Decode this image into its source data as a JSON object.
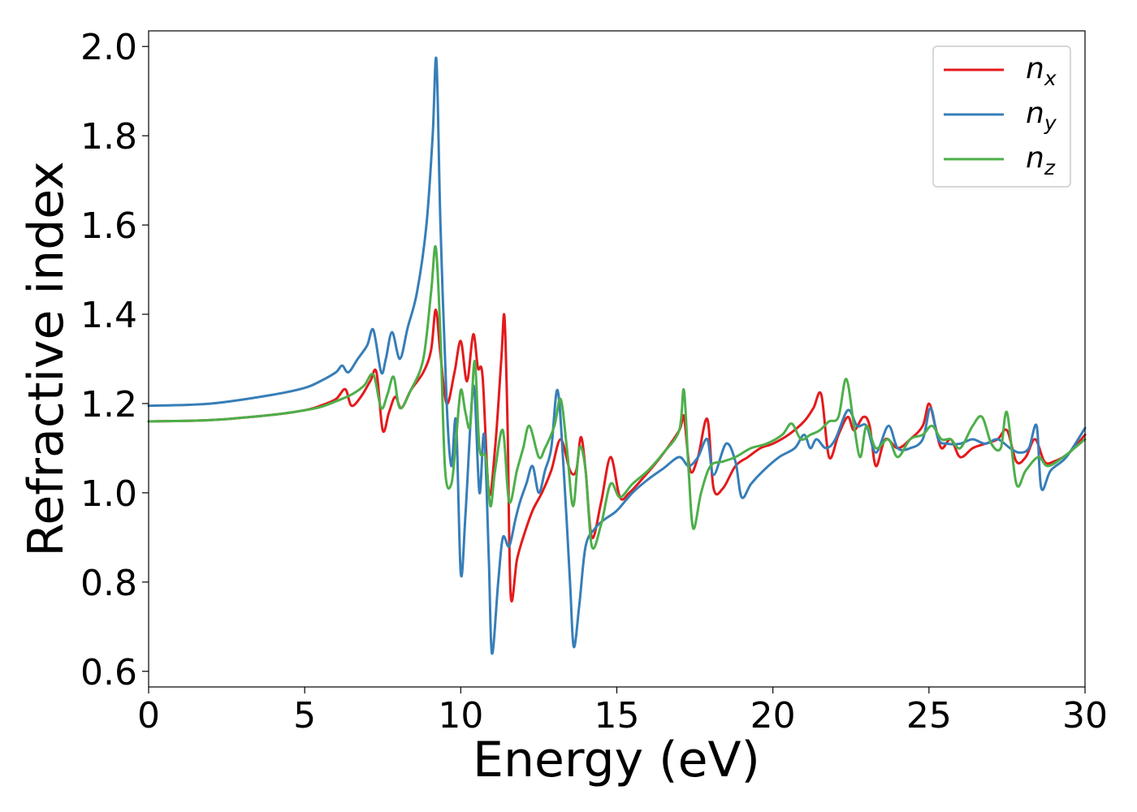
{
  "chart_data": {
    "type": "line",
    "title": "",
    "xlabel": "Energy (eV)",
    "ylabel": "Refractive index",
    "xlim": [
      0,
      30
    ],
    "ylim": [
      0.565,
      2.035
    ],
    "xticks": [
      0,
      5,
      10,
      15,
      20,
      25,
      30
    ],
    "xtick_labels": [
      "0",
      "5",
      "10",
      "15",
      "20",
      "25",
      "30"
    ],
    "yticks": [
      0.6,
      0.8,
      1.0,
      1.2,
      1.4,
      1.6,
      1.8,
      2.0
    ],
    "ytick_labels": [
      "0.6",
      "0.8",
      "1.0",
      "1.2",
      "1.4",
      "1.6",
      "1.8",
      "2.0"
    ],
    "grid": false,
    "legend_position": "top-right",
    "series": [
      {
        "name": "n_x",
        "legend_base": "n",
        "legend_sub": "x",
        "color": "#e41a1c",
        "points": [
          [
            0,
            1.16
          ],
          [
            2,
            1.163
          ],
          [
            4,
            1.175
          ],
          [
            5,
            1.185
          ],
          [
            5.5,
            1.195
          ],
          [
            6,
            1.21
          ],
          [
            6.3,
            1.232
          ],
          [
            6.5,
            1.195
          ],
          [
            6.8,
            1.215
          ],
          [
            7.1,
            1.25
          ],
          [
            7.3,
            1.27
          ],
          [
            7.5,
            1.14
          ],
          [
            7.7,
            1.18
          ],
          [
            7.9,
            1.215
          ],
          [
            8.1,
            1.19
          ],
          [
            8.4,
            1.23
          ],
          [
            8.8,
            1.27
          ],
          [
            9.05,
            1.32
          ],
          [
            9.2,
            1.41
          ],
          [
            9.35,
            1.31
          ],
          [
            9.55,
            1.2
          ],
          [
            9.8,
            1.27
          ],
          [
            10.0,
            1.34
          ],
          [
            10.2,
            1.25
          ],
          [
            10.4,
            1.355
          ],
          [
            10.55,
            1.28
          ],
          [
            10.7,
            1.26
          ],
          [
            10.9,
            1.0
          ],
          [
            11.1,
            1.1
          ],
          [
            11.3,
            1.3
          ],
          [
            11.4,
            1.395
          ],
          [
            11.5,
            1.15
          ],
          [
            11.6,
            0.77
          ],
          [
            11.8,
            0.85
          ],
          [
            12.0,
            0.9
          ],
          [
            12.3,
            0.96
          ],
          [
            12.6,
            1.0
          ],
          [
            12.9,
            1.05
          ],
          [
            13.2,
            1.12
          ],
          [
            13.5,
            1.05
          ],
          [
            13.7,
            1.05
          ],
          [
            13.85,
            1.125
          ],
          [
            14.0,
            1.05
          ],
          [
            14.2,
            0.9
          ],
          [
            14.5,
            0.98
          ],
          [
            14.8,
            1.08
          ],
          [
            15.1,
            0.99
          ],
          [
            15.4,
            1.0
          ],
          [
            15.8,
            1.03
          ],
          [
            16.4,
            1.08
          ],
          [
            17.0,
            1.14
          ],
          [
            17.15,
            1.17
          ],
          [
            17.35,
            1.05
          ],
          [
            17.6,
            1.08
          ],
          [
            17.9,
            1.165
          ],
          [
            18.1,
            1.01
          ],
          [
            18.4,
            1.01
          ],
          [
            18.8,
            1.06
          ],
          [
            19.2,
            1.08
          ],
          [
            19.6,
            1.1
          ],
          [
            20.0,
            1.11
          ],
          [
            20.5,
            1.13
          ],
          [
            21.0,
            1.16
          ],
          [
            21.3,
            1.19
          ],
          [
            21.55,
            1.22
          ],
          [
            21.8,
            1.08
          ],
          [
            22.1,
            1.13
          ],
          [
            22.4,
            1.17
          ],
          [
            22.6,
            1.14
          ],
          [
            22.9,
            1.17
          ],
          [
            23.1,
            1.15
          ],
          [
            23.3,
            1.06
          ],
          [
            23.6,
            1.12
          ],
          [
            24.0,
            1.1
          ],
          [
            24.4,
            1.12
          ],
          [
            24.8,
            1.15
          ],
          [
            25.0,
            1.2
          ],
          [
            25.2,
            1.15
          ],
          [
            25.4,
            1.1
          ],
          [
            25.7,
            1.12
          ],
          [
            26.0,
            1.08
          ],
          [
            26.4,
            1.1
          ],
          [
            26.8,
            1.11
          ],
          [
            27.2,
            1.12
          ],
          [
            27.5,
            1.14
          ],
          [
            27.8,
            1.07
          ],
          [
            28.1,
            1.08
          ],
          [
            28.4,
            1.12
          ],
          [
            28.7,
            1.07
          ],
          [
            29.0,
            1.07
          ],
          [
            29.5,
            1.09
          ],
          [
            30.0,
            1.13
          ]
        ]
      },
      {
        "name": "n_y",
        "legend_base": "n",
        "legend_sub": "y",
        "color": "#377eb8",
        "points": [
          [
            0,
            1.195
          ],
          [
            2,
            1.2
          ],
          [
            4,
            1.22
          ],
          [
            5,
            1.235
          ],
          [
            5.5,
            1.25
          ],
          [
            6,
            1.27
          ],
          [
            6.2,
            1.285
          ],
          [
            6.4,
            1.27
          ],
          [
            6.7,
            1.3
          ],
          [
            7.0,
            1.33
          ],
          [
            7.2,
            1.365
          ],
          [
            7.45,
            1.27
          ],
          [
            7.6,
            1.3
          ],
          [
            7.8,
            1.36
          ],
          [
            8.05,
            1.3
          ],
          [
            8.3,
            1.37
          ],
          [
            8.6,
            1.45
          ],
          [
            8.9,
            1.6
          ],
          [
            9.1,
            1.8
          ],
          [
            9.22,
            1.97
          ],
          [
            9.35,
            1.6
          ],
          [
            9.55,
            1.2
          ],
          [
            9.7,
            1.06
          ],
          [
            9.85,
            1.16
          ],
          [
            10.0,
            0.82
          ],
          [
            10.15,
            0.95
          ],
          [
            10.35,
            1.2
          ],
          [
            10.45,
            1.22
          ],
          [
            10.6,
            1.0
          ],
          [
            10.75,
            1.13
          ],
          [
            10.9,
            0.85
          ],
          [
            11.0,
            0.64
          ],
          [
            11.2,
            0.8
          ],
          [
            11.35,
            0.9
          ],
          [
            11.55,
            0.88
          ],
          [
            11.75,
            0.94
          ],
          [
            11.9,
            0.98
          ],
          [
            12.1,
            1.02
          ],
          [
            12.3,
            1.06
          ],
          [
            12.5,
            1.0
          ],
          [
            12.7,
            1.05
          ],
          [
            12.9,
            1.1
          ],
          [
            13.1,
            1.23
          ],
          [
            13.3,
            1.05
          ],
          [
            13.5,
            0.8
          ],
          [
            13.62,
            0.655
          ],
          [
            13.8,
            0.75
          ],
          [
            14.0,
            0.88
          ],
          [
            14.3,
            0.92
          ],
          [
            14.6,
            0.94
          ],
          [
            15.0,
            0.96
          ],
          [
            15.5,
            1.0
          ],
          [
            16.0,
            1.03
          ],
          [
            16.5,
            1.055
          ],
          [
            17.0,
            1.08
          ],
          [
            17.3,
            1.06
          ],
          [
            17.6,
            1.08
          ],
          [
            17.9,
            1.12
          ],
          [
            18.1,
            1.04
          ],
          [
            18.5,
            1.11
          ],
          [
            18.8,
            1.07
          ],
          [
            19.0,
            0.99
          ],
          [
            19.3,
            1.02
          ],
          [
            19.7,
            1.05
          ],
          [
            20.2,
            1.08
          ],
          [
            20.7,
            1.1
          ],
          [
            21.0,
            1.13
          ],
          [
            21.2,
            1.1
          ],
          [
            21.4,
            1.12
          ],
          [
            21.7,
            1.1
          ],
          [
            22.0,
            1.12
          ],
          [
            22.4,
            1.185
          ],
          [
            22.7,
            1.15
          ],
          [
            23.0,
            1.15
          ],
          [
            23.3,
            1.09
          ],
          [
            23.7,
            1.15
          ],
          [
            24.0,
            1.1
          ],
          [
            24.4,
            1.1
          ],
          [
            24.8,
            1.12
          ],
          [
            25.05,
            1.19
          ],
          [
            25.3,
            1.12
          ],
          [
            25.6,
            1.11
          ],
          [
            26.0,
            1.11
          ],
          [
            26.4,
            1.12
          ],
          [
            26.8,
            1.11
          ],
          [
            27.2,
            1.12
          ],
          [
            27.6,
            1.1
          ],
          [
            27.9,
            1.09
          ],
          [
            28.2,
            1.1
          ],
          [
            28.45,
            1.15
          ],
          [
            28.6,
            1.01
          ],
          [
            28.9,
            1.05
          ],
          [
            29.4,
            1.08
          ],
          [
            30.0,
            1.145
          ]
        ]
      },
      {
        "name": "n_z",
        "legend_base": "n",
        "legend_sub": "z",
        "color": "#4daf4a",
        "points": [
          [
            0,
            1.16
          ],
          [
            2,
            1.163
          ],
          [
            4,
            1.175
          ],
          [
            5,
            1.185
          ],
          [
            5.5,
            1.192
          ],
          [
            6,
            1.205
          ],
          [
            6.5,
            1.22
          ],
          [
            6.9,
            1.24
          ],
          [
            7.2,
            1.265
          ],
          [
            7.45,
            1.19
          ],
          [
            7.65,
            1.22
          ],
          [
            7.85,
            1.26
          ],
          [
            8.05,
            1.19
          ],
          [
            8.4,
            1.23
          ],
          [
            8.8,
            1.3
          ],
          [
            9.05,
            1.45
          ],
          [
            9.2,
            1.55
          ],
          [
            9.35,
            1.35
          ],
          [
            9.5,
            1.05
          ],
          [
            9.7,
            1.02
          ],
          [
            9.85,
            1.12
          ],
          [
            10.0,
            1.23
          ],
          [
            10.15,
            1.18
          ],
          [
            10.3,
            1.15
          ],
          [
            10.45,
            1.295
          ],
          [
            10.6,
            1.1
          ],
          [
            10.8,
            1.08
          ],
          [
            10.95,
            0.97
          ],
          [
            11.1,
            1.05
          ],
          [
            11.35,
            1.14
          ],
          [
            11.55,
            0.98
          ],
          [
            11.8,
            1.05
          ],
          [
            12.0,
            1.1
          ],
          [
            12.2,
            1.15
          ],
          [
            12.5,
            1.08
          ],
          [
            12.7,
            1.1
          ],
          [
            13.0,
            1.15
          ],
          [
            13.2,
            1.21
          ],
          [
            13.4,
            1.1
          ],
          [
            13.6,
            0.97
          ],
          [
            13.8,
            1.1
          ],
          [
            14.0,
            1.05
          ],
          [
            14.2,
            0.88
          ],
          [
            14.5,
            0.93
          ],
          [
            14.8,
            1.02
          ],
          [
            15.1,
            0.99
          ],
          [
            15.5,
            1.02
          ],
          [
            16.0,
            1.05
          ],
          [
            16.5,
            1.09
          ],
          [
            17.0,
            1.14
          ],
          [
            17.15,
            1.23
          ],
          [
            17.3,
            1.05
          ],
          [
            17.45,
            0.92
          ],
          [
            17.7,
            1.0
          ],
          [
            18.0,
            1.06
          ],
          [
            18.4,
            1.07
          ],
          [
            18.8,
            1.08
          ],
          [
            19.3,
            1.1
          ],
          [
            19.8,
            1.11
          ],
          [
            20.3,
            1.13
          ],
          [
            20.6,
            1.155
          ],
          [
            20.9,
            1.12
          ],
          [
            21.2,
            1.13
          ],
          [
            21.5,
            1.14
          ],
          [
            21.8,
            1.16
          ],
          [
            22.1,
            1.17
          ],
          [
            22.35,
            1.255
          ],
          [
            22.6,
            1.15
          ],
          [
            22.8,
            1.08
          ],
          [
            23.0,
            1.15
          ],
          [
            23.3,
            1.1
          ],
          [
            23.7,
            1.12
          ],
          [
            24.0,
            1.08
          ],
          [
            24.4,
            1.12
          ],
          [
            24.8,
            1.13
          ],
          [
            25.1,
            1.15
          ],
          [
            25.4,
            1.12
          ],
          [
            25.7,
            1.12
          ],
          [
            26.0,
            1.1
          ],
          [
            26.4,
            1.15
          ],
          [
            26.7,
            1.17
          ],
          [
            27.0,
            1.11
          ],
          [
            27.3,
            1.1
          ],
          [
            27.5,
            1.18
          ],
          [
            27.8,
            1.02
          ],
          [
            28.1,
            1.05
          ],
          [
            28.5,
            1.08
          ],
          [
            28.8,
            1.06
          ],
          [
            29.3,
            1.08
          ],
          [
            30.0,
            1.12
          ]
        ]
      }
    ]
  }
}
